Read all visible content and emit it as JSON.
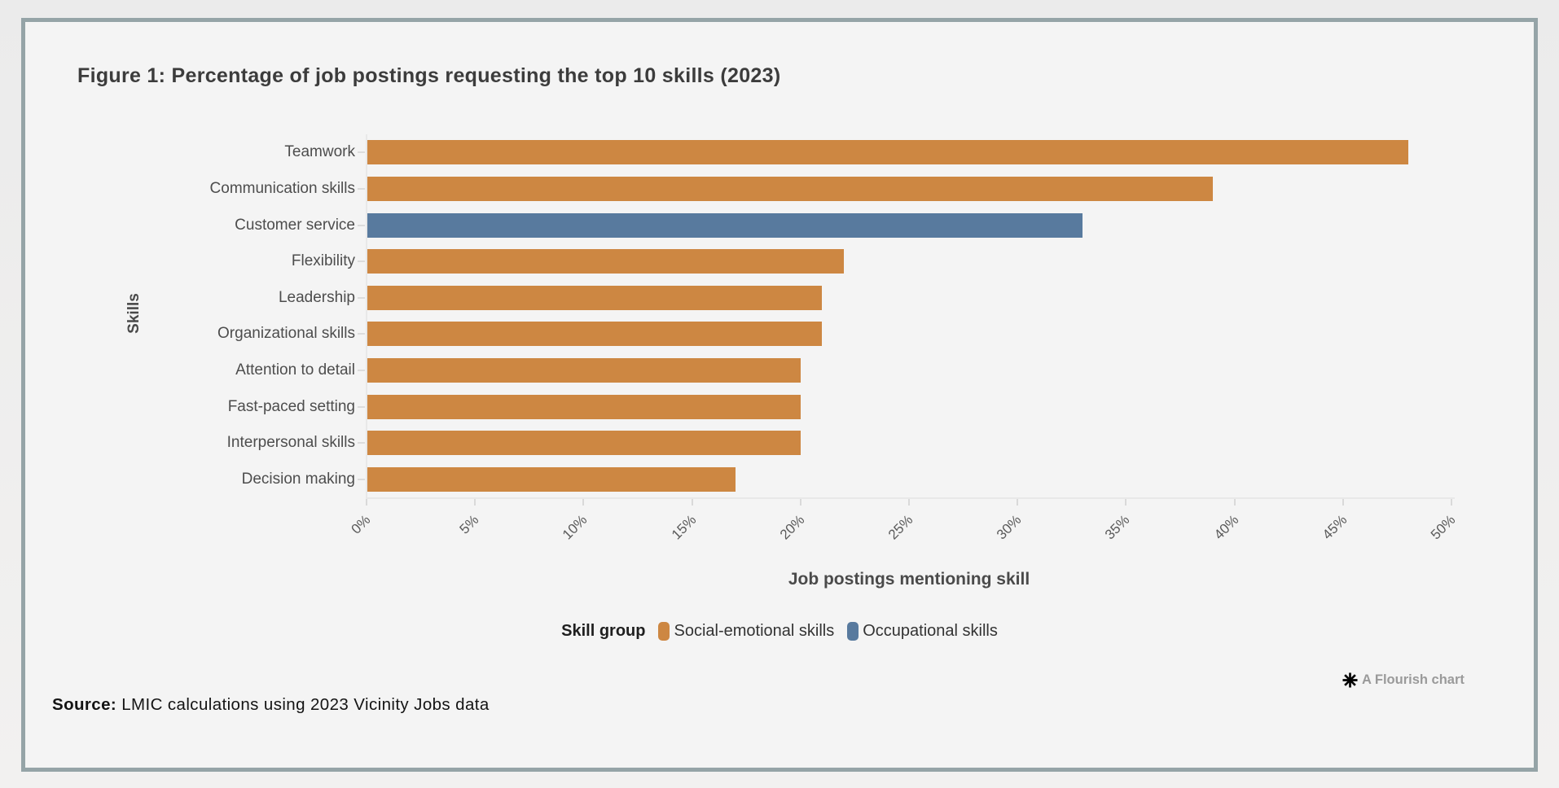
{
  "title": "Figure 1: Percentage of job postings requesting the top 10 skills (2023)",
  "chart_data": {
    "type": "bar",
    "orientation": "horizontal",
    "categories": [
      "Teamwork",
      "Communication skills",
      "Customer service",
      "Flexibility",
      "Leadership",
      "Organizational skills",
      "Attention to detail",
      "Fast-paced setting",
      "Interpersonal skills",
      "Decision making"
    ],
    "values": [
      48,
      39,
      33,
      22,
      21,
      21,
      20,
      20,
      20,
      17
    ],
    "category_groups": [
      "Social-emotional skills",
      "Social-emotional skills",
      "Occupational skills",
      "Social-emotional skills",
      "Social-emotional skills",
      "Social-emotional skills",
      "Social-emotional skills",
      "Social-emotional skills",
      "Social-emotional skills",
      "Social-emotional skills"
    ],
    "series": [
      {
        "name": "Social-emotional skills",
        "color": "#cd8742"
      },
      {
        "name": "Occupational skills",
        "color": "#587a9e"
      }
    ],
    "title": "Figure 1: Percentage of job postings requesting the top 10 skills (2023)",
    "xlabel": "Job postings mentioning skill",
    "ylabel": "Skills",
    "xlim": [
      0,
      50
    ],
    "x_ticks": [
      "0%",
      "5%",
      "10%",
      "15%",
      "20%",
      "25%",
      "30%",
      "35%",
      "40%",
      "45%",
      "50%"
    ],
    "grid": false,
    "legend_title": "Skill group",
    "legend_position": "bottom-center"
  },
  "attribution": {
    "icon": "flourish-asterisk-icon",
    "label": "A Flourish chart"
  },
  "source": {
    "prefix": "Source:",
    "text": " LMIC calculations using 2023 Vicinity Jobs data"
  },
  "colors": {
    "social_emotional": "#cd8742",
    "occupational": "#587a9e",
    "card_border": "#95a4a7",
    "card_background": "#f4f4f4"
  }
}
